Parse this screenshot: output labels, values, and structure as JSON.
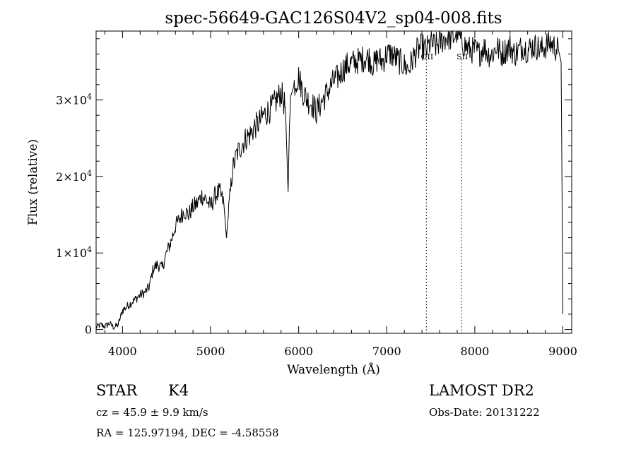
{
  "chart_data": {
    "type": "line",
    "title": "spec-56649-GAC126S04V2_sp04-008.fits",
    "xlabel": "Wavelength (Å)",
    "ylabel": "Flux (relative)",
    "xlim": [
      3700,
      9100
    ],
    "ylim": [
      -500,
      39000
    ],
    "x_ticks": [
      4000,
      5000,
      6000,
      7000,
      8000,
      9000
    ],
    "x_tick_labels": [
      "4000",
      "5000",
      "6000",
      "7000",
      "8000",
      "9000"
    ],
    "y_ticks": [
      0,
      10000,
      20000,
      30000
    ],
    "y_tick_labels": [
      {
        "mant": "0",
        "exp": ""
      },
      {
        "mant": "1×10",
        "exp": "4"
      },
      {
        "mant": "2×10",
        "exp": "4"
      },
      {
        "mant": "3×10",
        "exp": "4"
      }
    ],
    "grid": false,
    "line_color": "#000000",
    "series": [
      {
        "x": [
          3700,
          3750,
          3800,
          3850,
          3900,
          3950,
          4000,
          4050,
          4100,
          4150,
          4200,
          4250,
          4300,
          4350,
          4400,
          4450,
          4500,
          4550,
          4600,
          4650,
          4700,
          4750,
          4800,
          4850,
          4900,
          4950,
          5000,
          5050,
          5100,
          5150,
          5180,
          5200,
          5250,
          5300,
          5350,
          5400,
          5450,
          5500,
          5550,
          5600,
          5650,
          5700,
          5750,
          5800,
          5850,
          5880,
          5895,
          5910,
          5950,
          6000,
          6050,
          6100,
          6150,
          6200,
          6250,
          6300,
          6350,
          6400,
          6450,
          6500,
          6550,
          6600,
          6650,
          6700,
          6750,
          6800,
          6850,
          6900,
          6950,
          7000,
          7050,
          7100,
          7150,
          7200,
          7250,
          7300,
          7350,
          7400,
          7450,
          7500,
          7550,
          7600,
          7650,
          7700,
          7750,
          7800,
          7850,
          7900,
          7950,
          8000,
          8050,
          8100,
          8150,
          8200,
          8250,
          8300,
          8350,
          8400,
          8450,
          8500,
          8550,
          8600,
          8650,
          8700,
          8750,
          8800,
          8850,
          8900,
          8950,
          8980,
          9000
        ],
        "y": [
          300,
          600,
          400,
          800,
          300,
          600,
          2500,
          3000,
          3500,
          4000,
          4500,
          4800,
          5500,
          8000,
          8500,
          8000,
          10000,
          11500,
          13500,
          14500,
          15500,
          15000,
          16000,
          16500,
          17500,
          17000,
          16000,
          17500,
          18000,
          16500,
          12000,
          15000,
          21000,
          23000,
          24000,
          25000,
          25500,
          26500,
          27000,
          28000,
          28500,
          29000,
          30000,
          31000,
          29000,
          18000,
          26500,
          30500,
          32000,
          33000,
          31000,
          30000,
          29500,
          28500,
          29500,
          30500,
          31500,
          32500,
          33000,
          34000,
          34500,
          34800,
          35000,
          35200,
          35500,
          35500,
          34500,
          35500,
          35000,
          36000,
          36000,
          35500,
          35000,
          34500,
          34000,
          35500,
          36500,
          37000,
          36500,
          37500,
          37000,
          37500,
          38000,
          38200,
          38000,
          39000,
          37500,
          37000,
          36500,
          36500,
          36000,
          37000,
          36000,
          36000,
          37000,
          36000,
          36500,
          37000,
          36000,
          36500,
          37000,
          36500,
          37000,
          37000,
          36500,
          37000,
          37500,
          37000,
          36500,
          35000,
          2000
        ]
      }
    ],
    "lines": [
      {
        "x": 7450,
        "label": "OII"
      },
      {
        "x": 7850,
        "label": "SII"
      }
    ]
  },
  "info": {
    "class": "STAR",
    "subclass": "K4",
    "survey": "LAMOST DR2",
    "cz": "cz = 45.9 ± 9.9 km/s",
    "obs_date": "Obs-Date: 20131222",
    "radec": "RA = 125.97194, DEC =  -4.58558"
  }
}
